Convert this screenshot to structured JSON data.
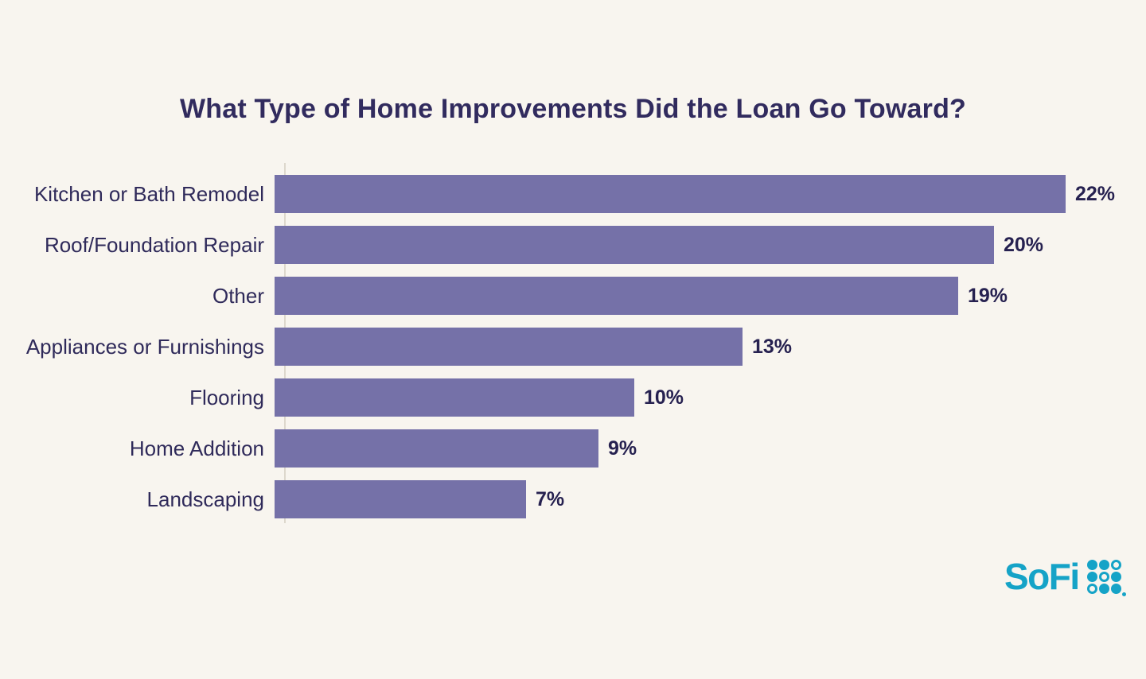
{
  "page": {
    "background_color": "#f8f5ef"
  },
  "chart_data": {
    "type": "bar",
    "orientation": "horizontal",
    "title": "What Type of Home Improvements Did the Loan Go Toward?",
    "categories": [
      "Kitchen or Bath Remodel",
      "Roof/Foundation Repair",
      "Other",
      "Appliances or Furnishings",
      "Flooring",
      "Home Addition",
      "Landscaping"
    ],
    "values": [
      22,
      20,
      19,
      13,
      10,
      9,
      7
    ],
    "value_labels": [
      "22%",
      "20%",
      "19%",
      "13%",
      "10%",
      "9%",
      "7%"
    ],
    "unit": "%",
    "xlim": [
      0,
      22
    ],
    "grid": false,
    "legend": false,
    "bar_color": "#7571a8",
    "title_color": "#312b5e",
    "label_color": "#2f2a5a",
    "value_label_color": "#262150"
  },
  "branding": {
    "logo_text": "SoFi",
    "logo_color": "#15a3c7"
  }
}
